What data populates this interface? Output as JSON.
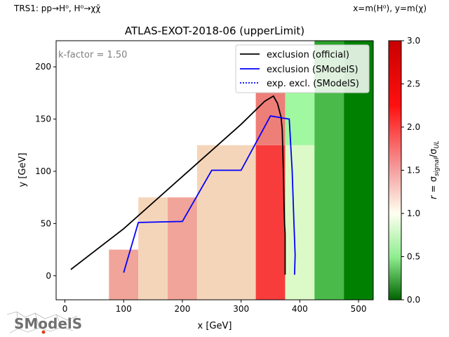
{
  "header": {
    "left_note": "TRS1: pp→H⁰, H⁰→χχ̄",
    "right_note": "x=m(H⁰), y=m(χ)"
  },
  "logo_text": "SModelS",
  "chart_data": {
    "type": "heatmap",
    "title": "ATLAS-EXOT-2018-06 (upperLimit)",
    "xlabel": "x [GeV]",
    "ylabel": "y [GeV]",
    "xlim": [
      -15,
      525
    ],
    "ylim": [
      -23,
      225
    ],
    "xticks": [
      0,
      100,
      200,
      300,
      400,
      500
    ],
    "yticks": [
      0,
      50,
      100,
      150,
      200
    ],
    "annotation": "k-factor = 1.50",
    "colorbar": {
      "label": "r = σ_signal/σ_UL",
      "range": [
        0,
        3.0
      ],
      "ticks": [
        "0.0",
        "0.5",
        "1.0",
        "1.5",
        "2.0",
        "2.5",
        "3.0"
      ],
      "colors": [
        "#008000",
        "#ffffff",
        "#ff0000",
        "#c00000"
      ]
    },
    "cells": [
      {
        "x0": 75,
        "x1": 125,
        "y0": -23,
        "y1": 25,
        "color": "#f1a499"
      },
      {
        "x0": 125,
        "x1": 175,
        "y0": -23,
        "y1": 75,
        "color": "#f5d5b9"
      },
      {
        "x0": 175,
        "x1": 225,
        "y0": -23,
        "y1": 75,
        "color": "#f1a499"
      },
      {
        "x0": 225,
        "x1": 325,
        "y0": -23,
        "y1": 125,
        "color": "#f5d5b9"
      },
      {
        "x0": 325,
        "x1": 375,
        "y0": -23,
        "y1": 125,
        "color": "#f83c3c"
      },
      {
        "x0": 325,
        "x1": 375,
        "y0": 125,
        "y1": 175,
        "color": "#ee7e78"
      },
      {
        "x0": 375,
        "x1": 425,
        "y0": -23,
        "y1": 125,
        "color": "#dcfac8"
      },
      {
        "x0": 375,
        "x1": 425,
        "y0": 125,
        "y1": 175,
        "color": "#a0f8a0"
      },
      {
        "x0": 425,
        "x1": 475,
        "y0": -23,
        "y1": 175,
        "color": "#4aba4a"
      },
      {
        "x0": 475,
        "x1": 525,
        "y0": -23,
        "y1": 225,
        "color": "#008000"
      },
      {
        "x0": 425,
        "x1": 475,
        "y0": 175,
        "y1": 225,
        "color": "#2aa22a"
      }
    ],
    "series": [
      {
        "name": "exclusion (official)",
        "color": "#000000",
        "style": "solid",
        "x": [
          10,
          100,
          200,
          300,
          340,
          355,
          362,
          368,
          370,
          372,
          373,
          374,
          375,
          375
        ],
        "y": [
          6,
          45,
          95,
          145,
          167,
          172,
          165,
          152,
          140,
          100,
          70,
          50,
          40,
          1
        ]
      },
      {
        "name": "exclusion (SModelS)",
        "color": "#0000ff",
        "style": "solid",
        "x": [
          100,
          125,
          200,
          250,
          300,
          350,
          382,
          387,
          390,
          392,
          391
        ],
        "y": [
          3,
          51,
          52,
          101,
          101,
          153,
          150,
          100,
          50,
          20,
          1
        ]
      },
      {
        "name": "exp. excl. (SModelS)",
        "color": "#0000ff",
        "style": "dotted",
        "x": [],
        "y": []
      }
    ],
    "legend_position": "top-right"
  }
}
